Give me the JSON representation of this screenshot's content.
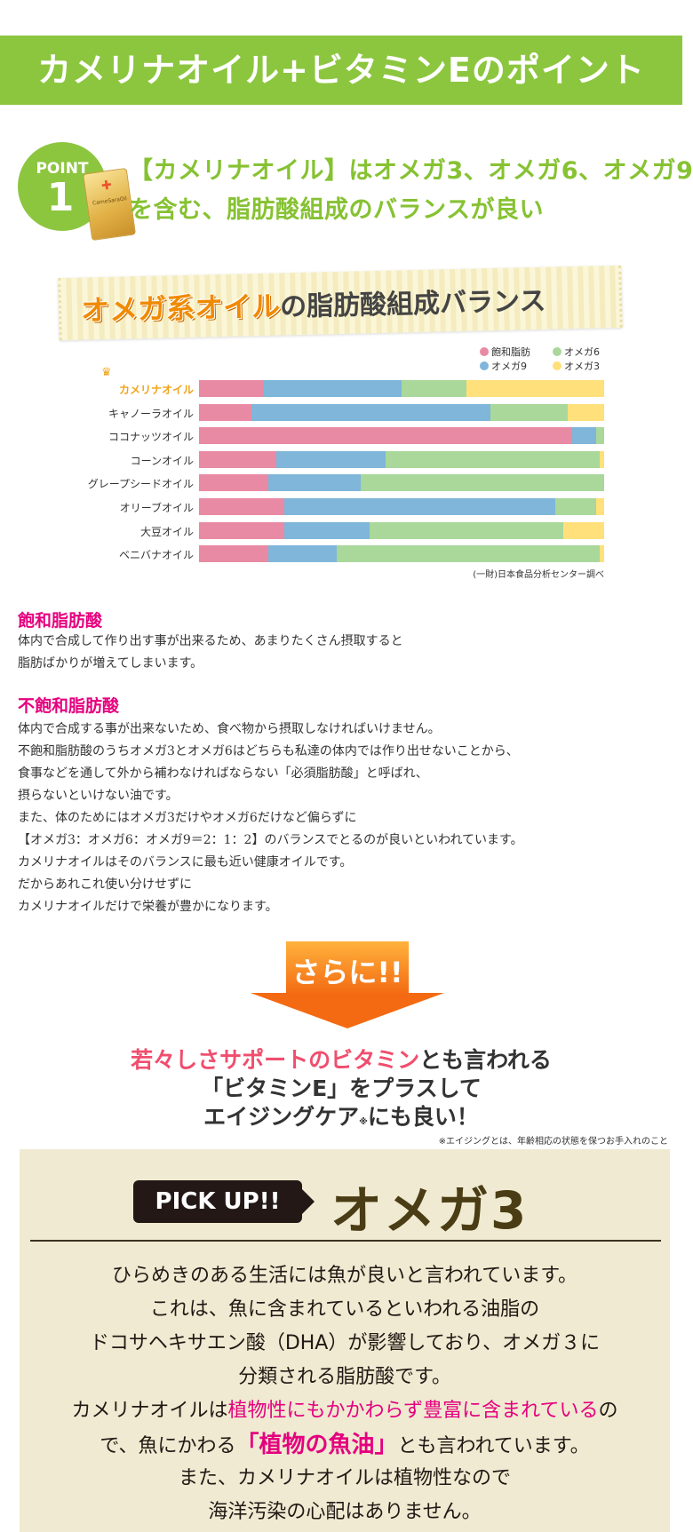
{
  "banner": {
    "title": "カメリナオイル+ビタミンEのポイント"
  },
  "point": {
    "label": "POINT",
    "number": "1",
    "product_label": "CameSaraOil",
    "heading_line1": "【カメリナオイル】はオメガ3、オメガ6、オメガ9",
    "heading_line2": "を含む、脂肪酸組成のバランスが良い"
  },
  "chart_title": {
    "highlight": "オメガ系オイル",
    "rest": "の脂肪酸組成バランス"
  },
  "colors": {
    "saturated": "#e98aa4",
    "omega9": "#7fb6da",
    "omega6": "#a9d89a",
    "omega3": "#ffe07a",
    "highlight_label": "#f0a41b"
  },
  "chart_data": {
    "type": "bar",
    "stacked": true,
    "orientation": "horizontal",
    "title": "オメガ系オイルの脂肪酸組成バランス",
    "categories": [
      "カメリナオイル",
      "キャノーラオイル",
      "ココナッツオイル",
      "コーンオイル",
      "グレープシードオイル",
      "オリーブオイル",
      "大豆オイル",
      "ベニバナオイル"
    ],
    "series": [
      {
        "name": "飽和脂肪",
        "values": [
          16,
          13,
          92,
          19,
          17,
          21,
          21,
          17
        ]
      },
      {
        "name": "オメガ9",
        "values": [
          34,
          59,
          6,
          27,
          23,
          67,
          21,
          17
        ]
      },
      {
        "name": "オメガ6",
        "values": [
          16,
          19,
          2,
          53,
          60,
          10,
          48,
          65
        ]
      },
      {
        "name": "オメガ3",
        "values": [
          34,
          9,
          0,
          1,
          0,
          2,
          10,
          1
        ]
      }
    ],
    "xlim": [
      0,
      100
    ],
    "legend": "top-right",
    "source": "(一財)日本食品分析センター調べ"
  },
  "legend": [
    {
      "name": "飽和脂肪"
    },
    {
      "name": "オメガ6"
    },
    {
      "name": "オメガ9"
    },
    {
      "name": "オメガ3"
    }
  ],
  "saturated": {
    "title": "飽和脂肪酸",
    "lines": [
      "体内で合成して作り出す事が出来るため、あまりたくさん摂取すると",
      "脂肪ばかりが増えてしまいます。"
    ]
  },
  "unsaturated": {
    "title": "不飽和脂肪酸",
    "lines": [
      "体内で合成する事が出来ないため、食べ物から摂取しなければいけません。",
      "不飽和脂肪酸のうちオメガ3とオメガ6はどちらも私達の体内では作り出せないことから、",
      "食事などを通して外から補わなければならない「必須脂肪酸」と呼ばれ、",
      "摂らないといけない油です。",
      "また、体のためにはオメガ3だけやオメガ6だけなど偏らずに",
      "【オメガ3：オメガ6：オメガ9＝2：1：2】のバランスでとるのが良いといわれています。",
      "カメリナオイルはそのバランスに最も近い健康オイルです。",
      "だからあれこれ使い分けせずに",
      "カメリナオイルだけで栄養が豊かになります。"
    ]
  },
  "sarani": {
    "label": "さらに!!",
    "line1_pink": "若々しさサポートのビタミン",
    "line1_rest": "とも言われる",
    "line2": "「ビタミンE」をプラスして",
    "line3_a": "エイジングケア",
    "line3_mark": "※",
    "line3_b": "にも良い！",
    "footnote": "※エイジングとは、年齢相応の状態を保つお手入れのこと"
  },
  "pickup": {
    "badge": "PICK UP!!",
    "title": "オメガ3",
    "line1": "ひらめきのある生活には魚が良いと言われています。",
    "line2": "これは、魚に含まれているといわれる油脂の",
    "line3": "ドコサヘキサエン酸（DHA）が影響しており、オメガ３に",
    "line4": "分類される脂肪酸です。",
    "line5_a": "カメリナオイルは",
    "line5_pink": "植物性にもかかわらず豊富に含まれている",
    "line5_b": "の",
    "line6_a": "で、魚にかわる",
    "line6_pink": "「植物の魚油」",
    "line6_b": "とも言われています。",
    "line7": "また、カメリナオイルは植物性なので",
    "line8": "海洋汚染の心配はありません。"
  }
}
